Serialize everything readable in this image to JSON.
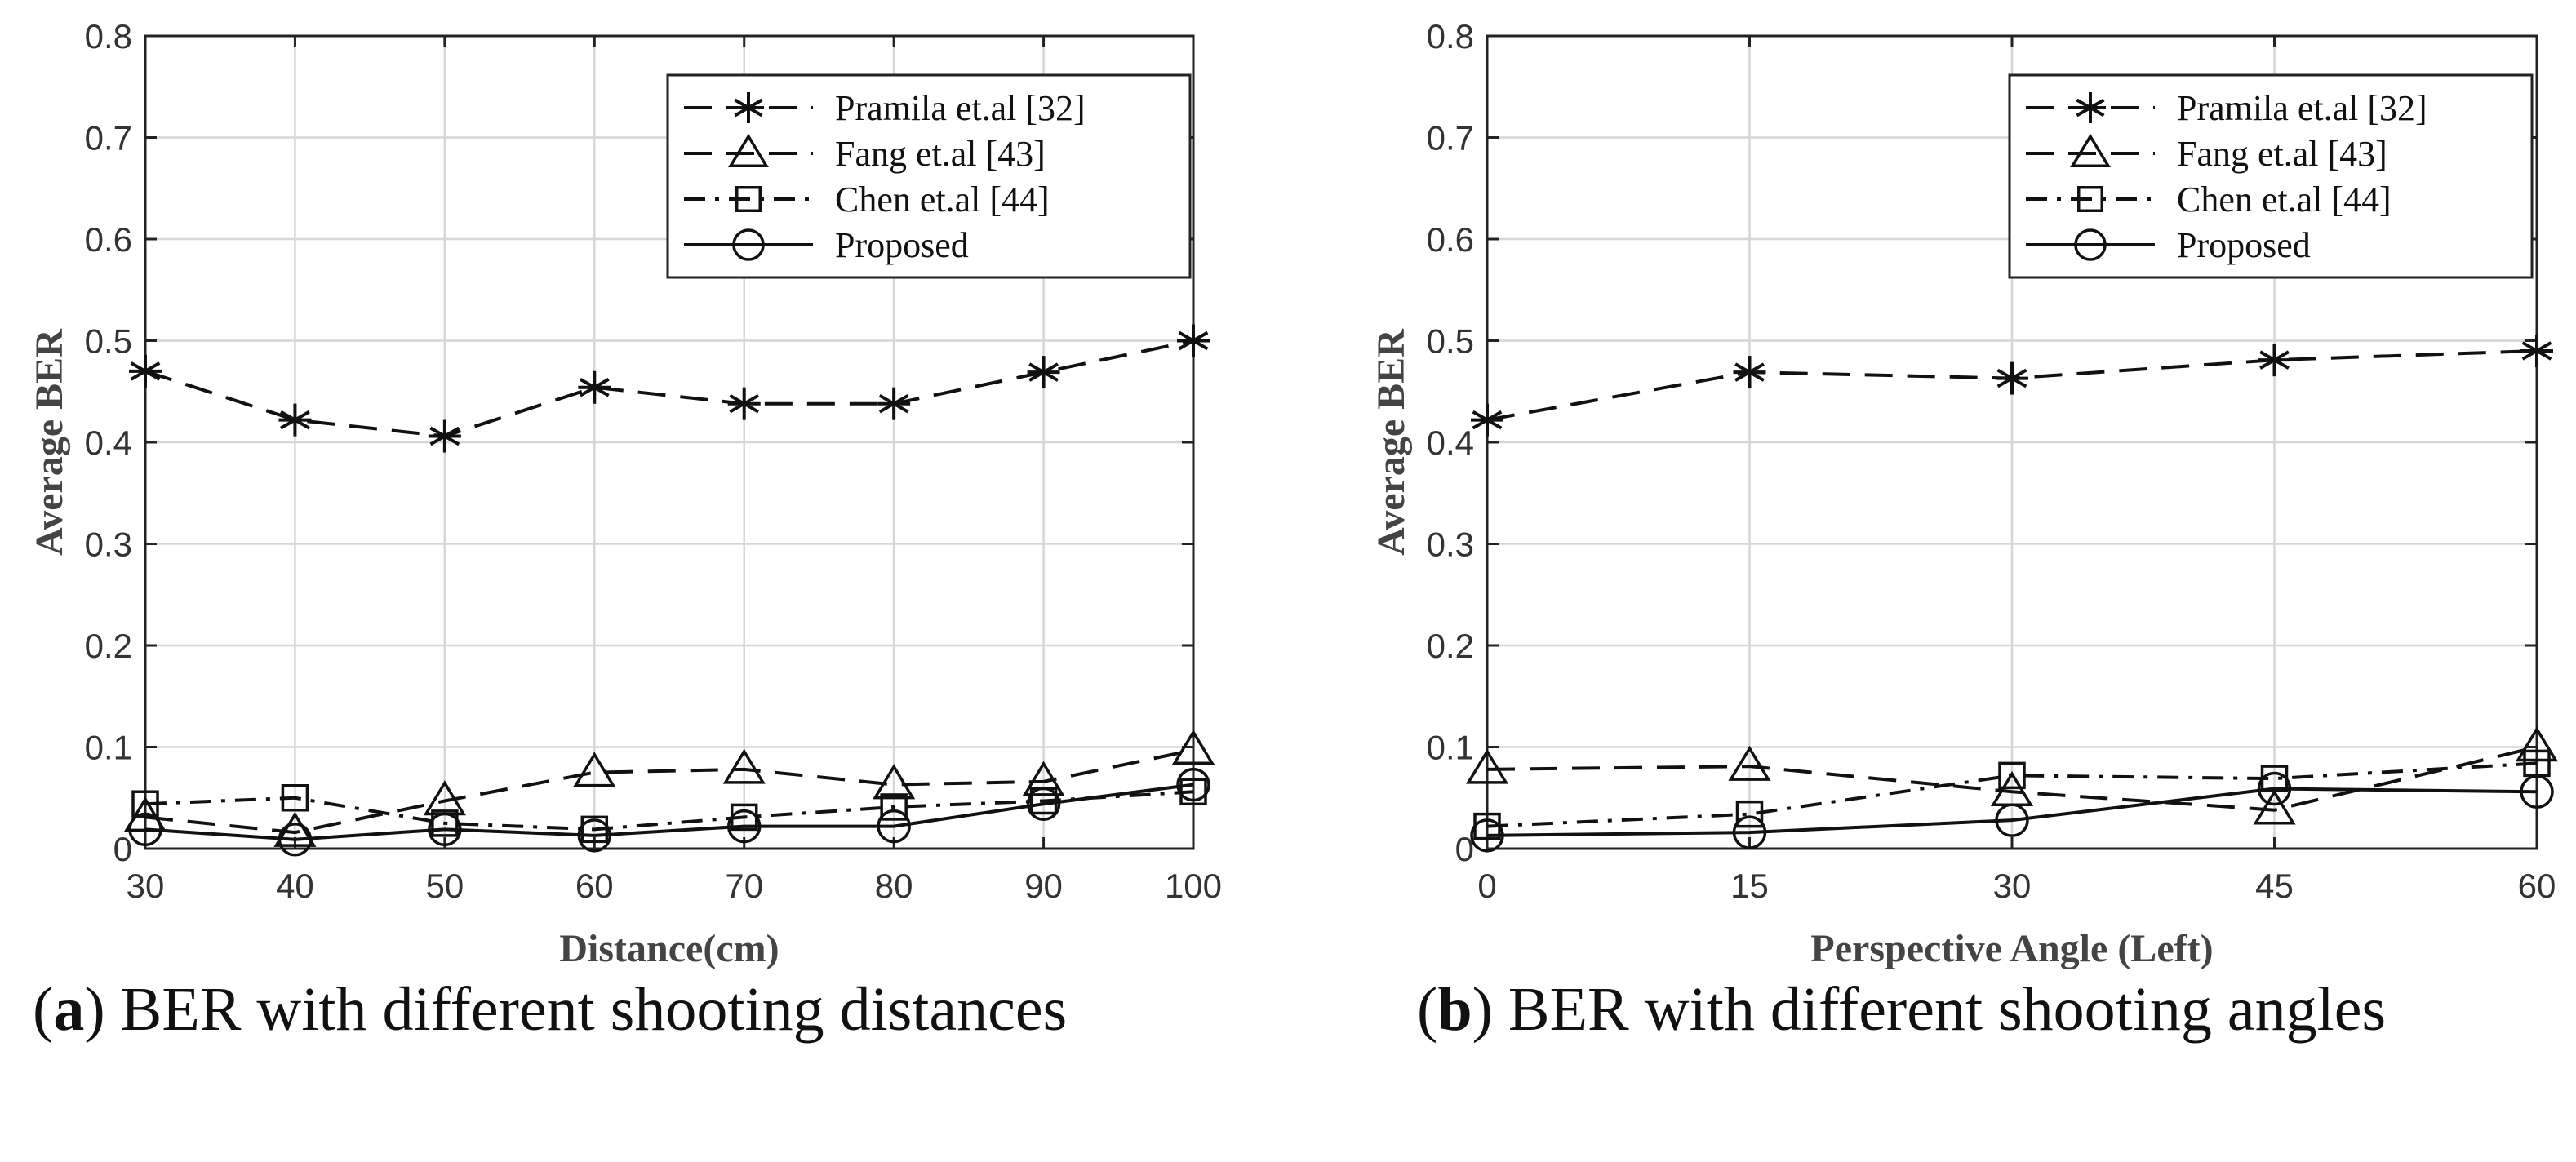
{
  "chart_data": [
    {
      "type": "line",
      "caption": {
        "letter": "a",
        "text": "BER with different shooting distances"
      },
      "xlabel": "Distance(cm)",
      "ylabel": "Average BER",
      "x": [
        30,
        40,
        50,
        60,
        70,
        80,
        90,
        100
      ],
      "xticks": [
        "30",
        "40",
        "50",
        "60",
        "70",
        "80",
        "90",
        "100"
      ],
      "xlim": [
        30,
        100
      ],
      "ylim": [
        0,
        0.8
      ],
      "yticks": [
        "0",
        "0.1",
        "0.2",
        "0.3",
        "0.4",
        "0.5",
        "0.6",
        "0.7",
        "0.8"
      ],
      "grid": true,
      "legend_position": "top-right",
      "series": [
        {
          "name": "Pramila et.al [32]",
          "marker": "asterisk",
          "line": "dashed",
          "values": [
            0.47,
            0.422,
            0.406,
            0.454,
            0.438,
            0.438,
            0.469,
            0.5
          ]
        },
        {
          "name": "Fang et.al [43]",
          "marker": "triangle",
          "line": "dashed",
          "values": [
            0.031,
            0.016,
            0.047,
            0.075,
            0.078,
            0.063,
            0.066,
            0.097
          ]
        },
        {
          "name": "Chen et.al [44]",
          "marker": "square",
          "line": "dashdot",
          "values": [
            0.044,
            0.05,
            0.025,
            0.019,
            0.031,
            0.041,
            0.047,
            0.056
          ]
        },
        {
          "name": "Proposed",
          "marker": "circle",
          "line": "solid",
          "values": [
            0.019,
            0.009,
            0.019,
            0.013,
            0.022,
            0.022,
            0.044,
            0.063
          ]
        }
      ]
    },
    {
      "type": "line",
      "caption": {
        "letter": "b",
        "text": "BER with different shooting angles"
      },
      "xlabel": "Perspective Angle (Left)",
      "ylabel": "Average BER",
      "x": [
        0,
        15,
        30,
        45,
        60
      ],
      "xticks": [
        "0",
        "15",
        "30",
        "45",
        "60"
      ],
      "xlim": [
        0,
        60
      ],
      "ylim": [
        0,
        0.8
      ],
      "yticks": [
        "0",
        "0.1",
        "0.2",
        "0.3",
        "0.4",
        "0.5",
        "0.6",
        "0.7",
        "0.8"
      ],
      "grid": true,
      "legend_position": "top-right",
      "series": [
        {
          "name": "Pramila et.al [32]",
          "marker": "asterisk",
          "line": "dashed",
          "values": [
            0.422,
            0.469,
            0.463,
            0.481,
            0.49
          ]
        },
        {
          "name": "Fang et.al [43]",
          "marker": "triangle",
          "line": "dashed",
          "values": [
            0.078,
            0.081,
            0.056,
            0.038,
            0.1
          ]
        },
        {
          "name": "Chen et.al [44]",
          "marker": "square",
          "line": "dashdot",
          "values": [
            0.022,
            0.034,
            0.072,
            0.069,
            0.084
          ]
        },
        {
          "name": "Proposed",
          "marker": "circle",
          "line": "solid",
          "values": [
            0.013,
            0.016,
            0.028,
            0.059,
            0.056
          ]
        }
      ]
    }
  ]
}
